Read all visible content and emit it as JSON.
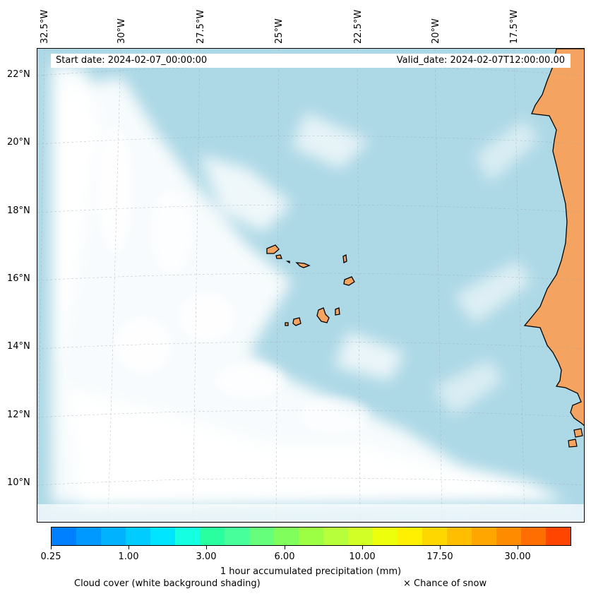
{
  "map": {
    "start_date": "Start date: 2024-02-07_00:00:00",
    "valid_date": "Valid_date: 2024-02-07T12:00:00.00",
    "longitude_labels": [
      "32.5°W",
      "30°W",
      "27.5°W",
      "25°W",
      "22.5°W",
      "20°W",
      "17.5°W"
    ],
    "latitude_labels": [
      "22°N",
      "20°N",
      "18°N",
      "16°N",
      "14°N",
      "12°N",
      "10°N"
    ],
    "colors": {
      "ocean": "#add8e6",
      "land": "#f4a460",
      "cloud": "#ffffff",
      "coastline": "#000000"
    }
  },
  "colorbar": {
    "title": "1 hour accumulated precipitation (mm)",
    "tick_labels": [
      "0.25",
      "1.00",
      "3.00",
      "6.00",
      "10.00",
      "17.50",
      "30.00"
    ],
    "colors": [
      "#0080ff",
      "#0099ff",
      "#00b2ff",
      "#00ccff",
      "#00e5ff",
      "#15ffe1",
      "#2aff9f",
      "#47ff9b",
      "#65ff7c",
      "#80ff5c",
      "#9dff44",
      "#b7ff3a",
      "#d2ff25",
      "#eeff0c",
      "#ffef00",
      "#ffd700",
      "#ffbf00",
      "#ffa600",
      "#ff8c00",
      "#ff6e00",
      "#ff4500"
    ]
  },
  "legend": {
    "cloud_label": "Cloud cover (white background shading)",
    "snow_label": "× Chance of snow"
  }
}
